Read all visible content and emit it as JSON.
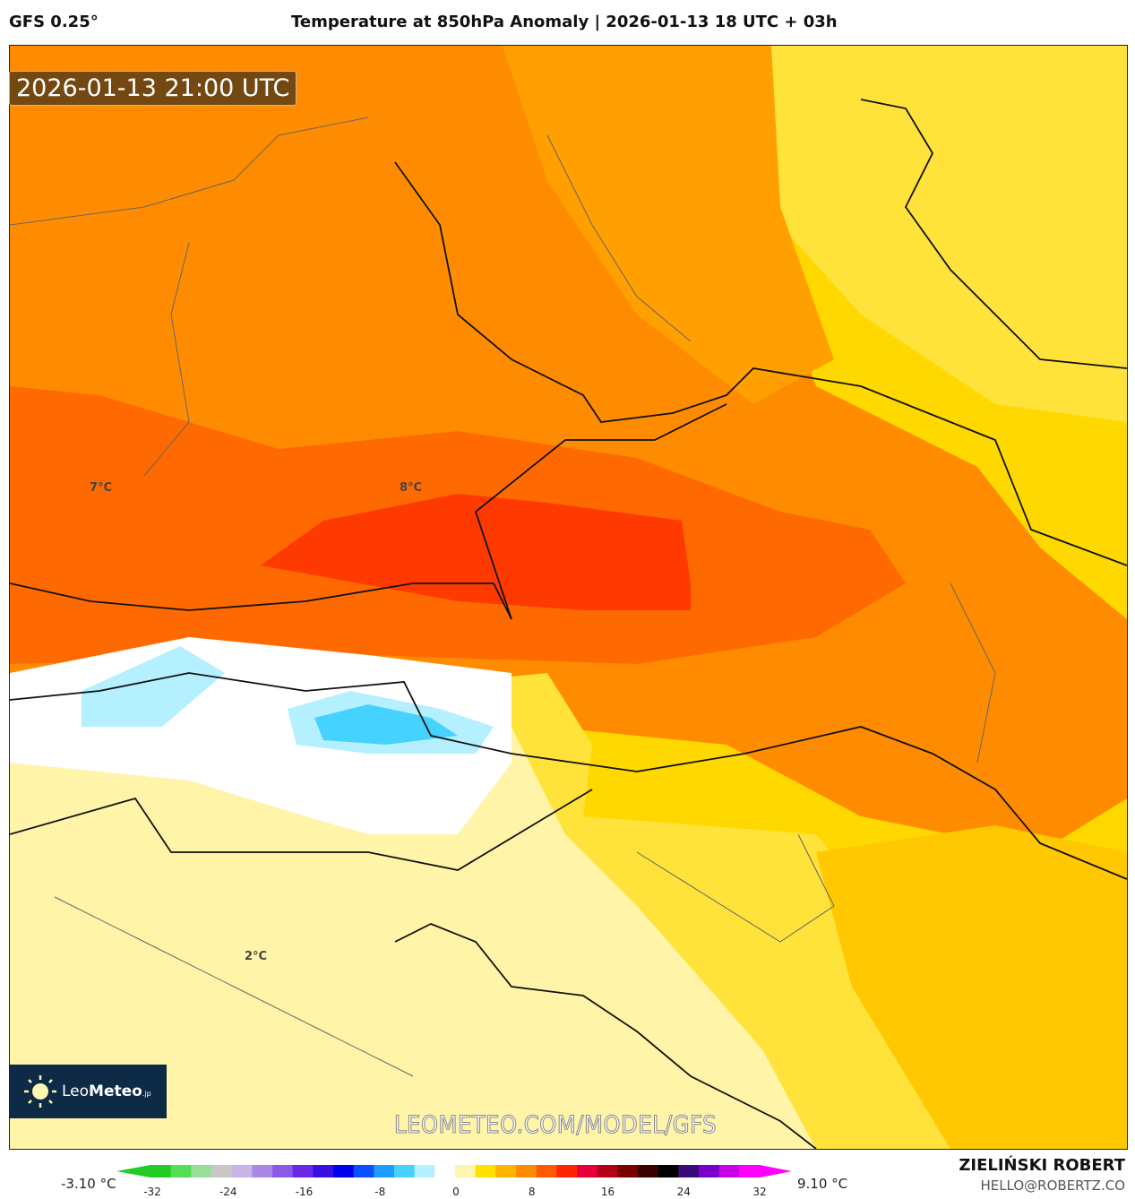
{
  "header": {
    "model": "GFS 0.25°",
    "title": "Temperature at 850hPa Anomaly | 2026-01-13 18 UTC + 03h"
  },
  "map": {
    "valid_time": "2026-01-13 21:00 UTC",
    "labels": [
      "7°C",
      "8°C",
      "2°C"
    ],
    "watermark": "LEOMETEO.COM/MODEL/GFS",
    "logo": {
      "part1": "Leo",
      "part2": "Meteo",
      "suffix": ".jp"
    }
  },
  "colorbar": {
    "min_label": "-3.10 °C",
    "max_label": "9.10 °C",
    "ticks": [
      "-32",
      "-24",
      "-16",
      "-8",
      "0",
      "8",
      "16",
      "24",
      "32"
    ],
    "colors": [
      "#22cc22",
      "#55dd55",
      "#99dd99",
      "#c8c8c8",
      "#c8b4e6",
      "#a88ae6",
      "#8a5ae6",
      "#6a28e6",
      "#3a10e0",
      "#0000ee",
      "#0a50ff",
      "#1e9cff",
      "#46d2ff",
      "#b4f0ff",
      "#ffffff",
      "#fff5b0",
      "#ffe000",
      "#ffb400",
      "#ff8c00",
      "#ff5a00",
      "#ff2400",
      "#e6003c",
      "#b40014",
      "#780000",
      "#3c0000",
      "#000000",
      "#3c0a78",
      "#7800c8",
      "#c800e6",
      "#ff00ff"
    ]
  },
  "footer": {
    "author": "ZIELIŃSKI ROBERT",
    "email": "HELLO@ROBERTZ.CO"
  }
}
